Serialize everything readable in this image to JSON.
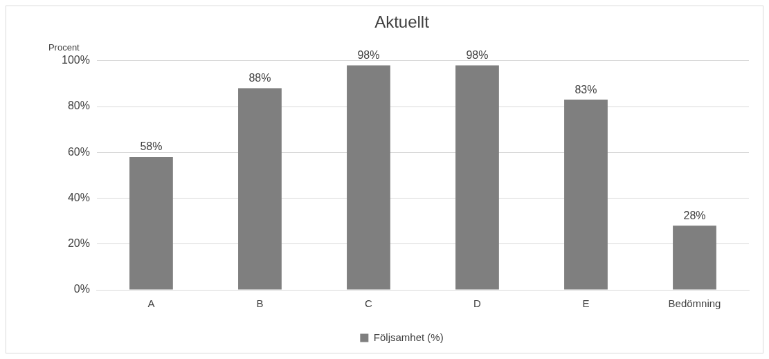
{
  "chart_data": {
    "type": "bar",
    "title": "Aktuellt",
    "ylabel": "Procent",
    "categories": [
      "A",
      "B",
      "C",
      "D",
      "E",
      "Bedömning"
    ],
    "series": [
      {
        "name": "Följsamhet (%)",
        "color": "#7f7f7f",
        "values": [
          58,
          88,
          98,
          98,
          83,
          28
        ],
        "value_labels": [
          "58%",
          "88%",
          "98%",
          "98%",
          "83%",
          "28%"
        ]
      }
    ],
    "ylim": [
      0,
      100
    ],
    "yticks": [
      {
        "value": 0,
        "label": "0%"
      },
      {
        "value": 20,
        "label": "20%"
      },
      {
        "value": 40,
        "label": "40%"
      },
      {
        "value": 60,
        "label": "60%"
      },
      {
        "value": 80,
        "label": "80%"
      },
      {
        "value": 100,
        "label": "100%"
      }
    ],
    "grid": "y",
    "legend": "bottom"
  }
}
